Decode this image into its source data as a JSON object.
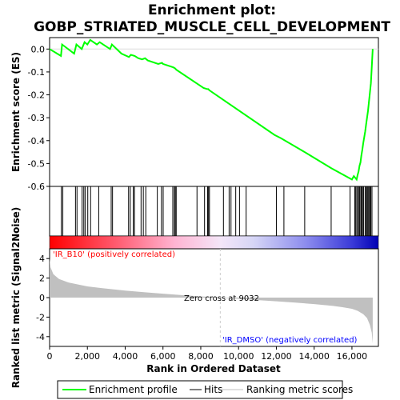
{
  "title_line1": "Enrichment plot:",
  "title_line2": "GOBP_STRIATED_MUSCLE_CELL_DEVELOPMENT",
  "colors": {
    "enrichment": "#00ff00",
    "hits": "#000000",
    "metric_fill": "#c0c0c0",
    "pos_label": "#ff0000",
    "neg_label": "#0000ff",
    "zero_line": "#dcdcdc"
  },
  "chart_data": {
    "type": "line",
    "x_range": [
      0,
      17400
    ],
    "xticks": [
      0,
      2000,
      4000,
      6000,
      8000,
      10000,
      12000,
      14000,
      16000
    ],
    "xtick_labels": [
      "0",
      "2,000",
      "4,000",
      "6,000",
      "8,000",
      "10,000",
      "12,000",
      "14,000",
      "16,000"
    ],
    "xlabel": "Rank in Ordered Dataset",
    "top_panel": {
      "ylabel": "Enrichment score (ES)",
      "ylim": [
        -0.6,
        0.05
      ],
      "yticks": [
        0.0,
        -0.1,
        -0.2,
        -0.3,
        -0.4,
        -0.5,
        -0.6
      ],
      "ytick_labels": [
        "0.0",
        "-0.1",
        "-0.2",
        "-0.3",
        "-0.4",
        "-0.5",
        "-0.6"
      ],
      "series": [
        {
          "name": "Enrichment profile",
          "x": [
            0,
            600,
            660,
            1300,
            1420,
            1700,
            1850,
            2000,
            2150,
            2500,
            2650,
            3200,
            3300,
            3800,
            4200,
            4300,
            4500,
            4700,
            4900,
            5050,
            5200,
            5750,
            5950,
            6000,
            6550,
            6650,
            6700,
            8150,
            8350,
            8400,
            8450,
            11900,
            12250,
            13500,
            14900,
            16000,
            16100,
            16250,
            16300,
            16350,
            16400,
            16450,
            16500,
            16550,
            16600,
            16650,
            16700,
            16750,
            16800,
            16850,
            16900,
            16950,
            17000,
            17050,
            17100
          ],
          "y": [
            0.0,
            -0.03,
            0.02,
            -0.02,
            0.02,
            0.0,
            0.03,
            0.02,
            0.04,
            0.02,
            0.03,
            0.0,
            0.02,
            -0.02,
            -0.035,
            -0.025,
            -0.03,
            -0.04,
            -0.045,
            -0.04,
            -0.05,
            -0.065,
            -0.06,
            -0.065,
            -0.08,
            -0.085,
            -0.09,
            -0.17,
            -0.175,
            -0.175,
            -0.18,
            -0.375,
            -0.39,
            -0.45,
            -0.52,
            -0.57,
            -0.555,
            -0.57,
            -0.55,
            -0.535,
            -0.51,
            -0.495,
            -0.465,
            -0.44,
            -0.41,
            -0.385,
            -0.36,
            -0.33,
            -0.3,
            -0.27,
            -0.23,
            -0.19,
            -0.15,
            -0.08,
            0.0
          ]
        }
      ]
    },
    "hits": [
      620,
      700,
      1370,
      1450,
      1720,
      1810,
      1880,
      2020,
      2170,
      2600,
      3260,
      3330,
      4180,
      4270,
      4430,
      4490,
      4840,
      4960,
      5090,
      5700,
      5920,
      6010,
      6520,
      6600,
      6650,
      6700,
      7800,
      8200,
      8360,
      8410,
      8460,
      9200,
      9500,
      9600,
      9850,
      10050,
      10400,
      12000,
      12400,
      13500,
      14900,
      15900,
      16150,
      16200,
      16260,
      16320,
      16380,
      16420,
      16480,
      16520,
      16560,
      16620,
      16700,
      16760,
      16800,
      16850,
      16900,
      16950,
      17000,
      17060
    ],
    "bottom_panel": {
      "ylabel": "Ranked list metric (Signal2Noise)",
      "ylim": [
        -5,
        5
      ],
      "yticks": [
        4,
        2,
        0,
        -2,
        -4
      ],
      "ytick_labels": [
        "4",
        "2",
        "0",
        "-2",
        "-4"
      ],
      "series": [
        {
          "name": "Ranking metric scores",
          "x": [
            0,
            50,
            200,
            500,
            1000,
            2000,
            3000,
            4000,
            5000,
            6000,
            7000,
            8000,
            9032,
            10000,
            11000,
            12000,
            13000,
            14000,
            15000,
            15500,
            16000,
            16300,
            16600,
            16800,
            16950,
            17050,
            17100
          ],
          "y": [
            4.0,
            3.1,
            2.4,
            1.9,
            1.55,
            1.15,
            0.92,
            0.72,
            0.55,
            0.4,
            0.25,
            0.12,
            0.0,
            -0.12,
            -0.25,
            -0.38,
            -0.52,
            -0.66,
            -0.85,
            -0.98,
            -1.15,
            -1.35,
            -1.7,
            -2.1,
            -2.8,
            -3.6,
            -4.7
          ]
        }
      ],
      "zero_cross_label": "Zero cross at 9032",
      "zero_cross": 9032
    },
    "pos_label": "'IR_B10' (positively correlated)",
    "neg_label": "'IR_DMSO' (negatively correlated)",
    "legend": [
      "Enrichment profile",
      "Hits",
      "Ranking metric scores"
    ],
    "legend_position": "bottom"
  }
}
